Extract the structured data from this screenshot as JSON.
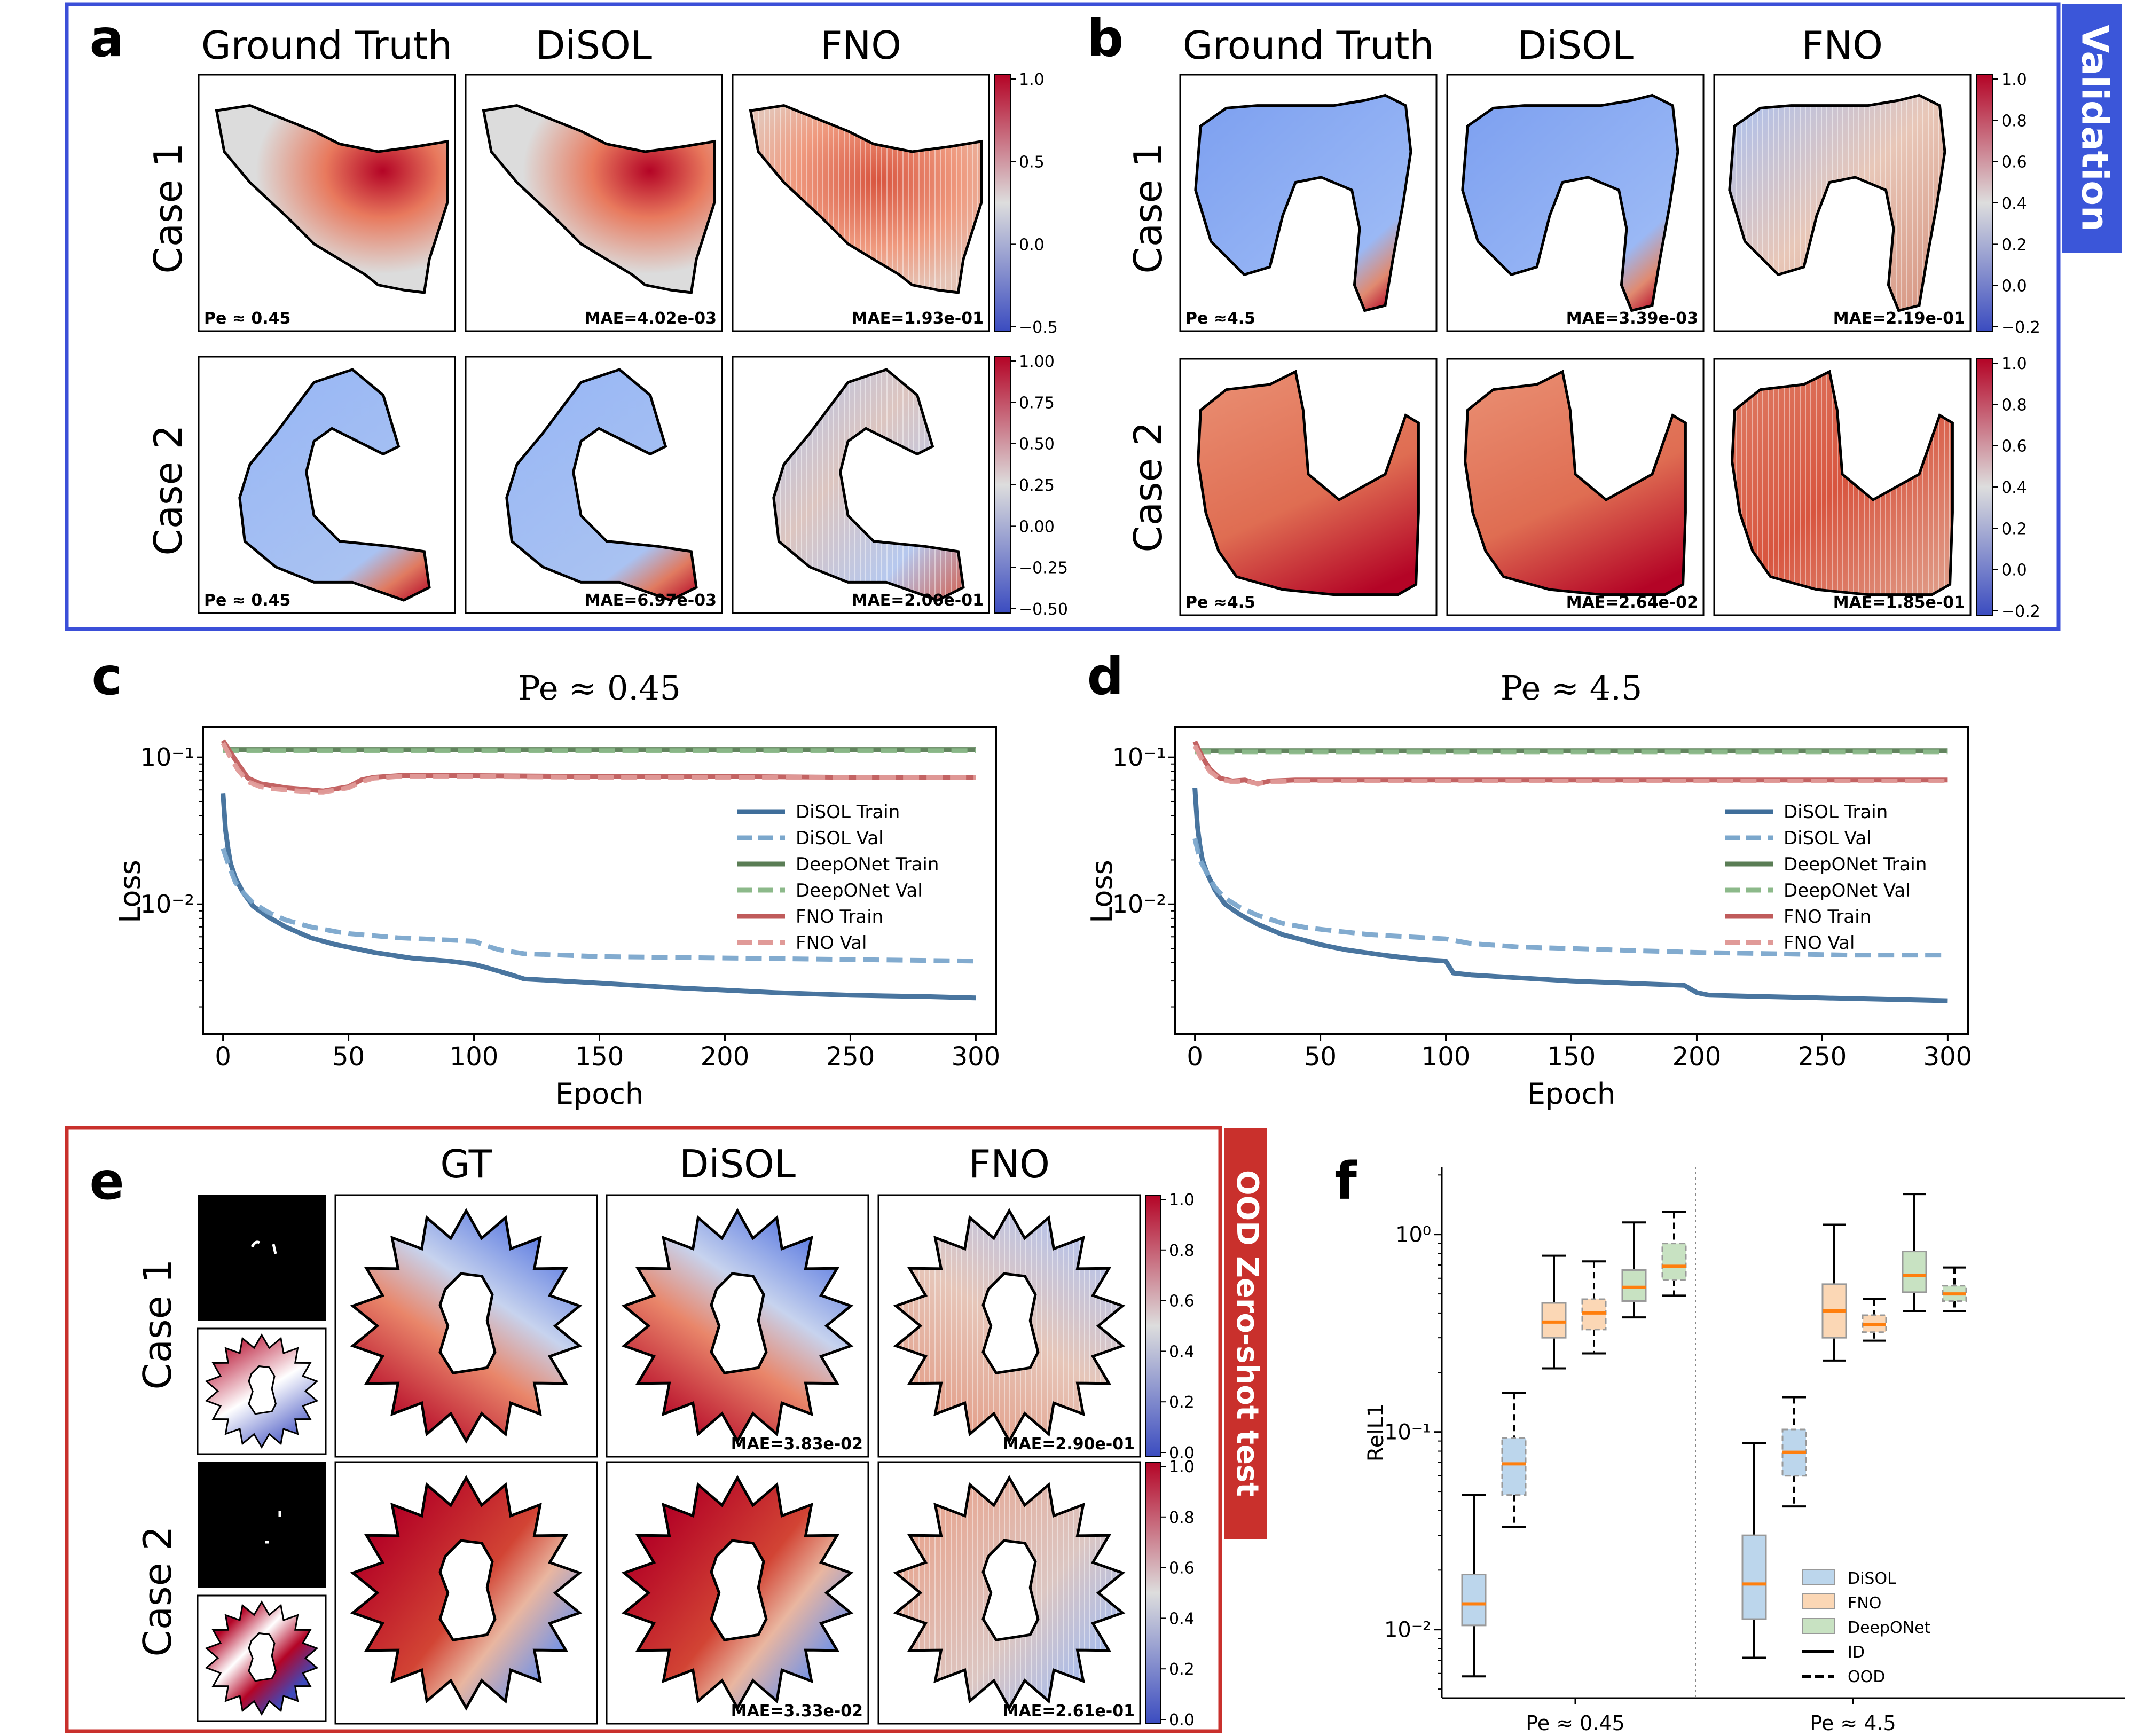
{
  "panel_letters": {
    "a": "a",
    "b": "b",
    "c": "c",
    "d": "d",
    "e": "e",
    "f": "f"
  },
  "colors": {
    "val_box": "#3b4fd8",
    "ood_box": "#c9302c",
    "val_tag": "#3b56d9",
    "ood_tag": "#c9302c",
    "disol": "#3f6e9a",
    "disol_light": "#7ba7cc",
    "deeponet": "#5a7d55",
    "deeponet_light": "#8cb98a",
    "fno": "#c05b5b",
    "fno_light": "#e09a98",
    "box_disol": "#bcd6ec",
    "box_fno": "#fbd7b5",
    "box_deeponet": "#c8e2c2",
    "median": "#ff7f0e"
  },
  "validation_tag": "Validation",
  "ood_tag": "OOD Zero-shot test",
  "panel_a": {
    "col_titles": [
      "Ground Truth",
      "DiSOL",
      "FNO"
    ],
    "row_labels": [
      "Case 1",
      "Case 2"
    ],
    "case1_labels": [
      "Pe ≈ 0.45",
      "MAE=4.02e-03",
      "MAE=1.93e-01"
    ],
    "case2_labels": [
      "Pe ≈ 0.45",
      "MAE=6.97e-03",
      "MAE=2.00e-01"
    ],
    "cbar1_ticks": [
      "1.0",
      "0.5",
      "0.0",
      "−0.5"
    ],
    "cbar2_ticks": [
      "1.00",
      "0.75",
      "0.50",
      "0.25",
      "0.00",
      "−0.25",
      "−0.50"
    ]
  },
  "panel_b": {
    "col_titles": [
      "Ground Truth",
      "DiSOL",
      "FNO"
    ],
    "row_labels": [
      "Case 1",
      "Case 2"
    ],
    "case1_labels": [
      "Pe ≈4.5",
      "MAE=3.39e-03",
      "MAE=2.19e-01"
    ],
    "case2_labels": [
      "Pe ≈4.5",
      "MAE=2.64e-02",
      "MAE=1.85e-01"
    ],
    "cbar1_ticks": [
      "1.0",
      "0.8",
      "0.6",
      "0.4",
      "0.2",
      "0.0",
      "−0.2"
    ],
    "cbar2_ticks": [
      "1.0",
      "0.8",
      "0.6",
      "0.4",
      "0.2",
      "0.0",
      "−0.2"
    ]
  },
  "panel_e": {
    "col_titles": [
      "GT",
      "DiSOL",
      "FNO"
    ],
    "row_labels": [
      "Case 1",
      "Case 2"
    ],
    "case1_labels": [
      "MAE=3.83e-02",
      "MAE=2.90e-01"
    ],
    "case2_labels": [
      "MAE=3.33e-02",
      "MAE=2.61e-01"
    ],
    "cbar_ticks": [
      "1.0",
      "0.8",
      "0.6",
      "0.4",
      "0.2",
      "0.0"
    ]
  },
  "chart_data": [
    {
      "id": "c",
      "type": "line",
      "title": "Pe ≈ 0.45",
      "xlabel": "Epoch",
      "ylabel": "Loss",
      "yscale": "log",
      "xlim": [
        -8,
        308
      ],
      "ylim": [
        0.0013,
        0.16
      ],
      "xticks": [
        0,
        50,
        100,
        150,
        200,
        250,
        300
      ],
      "ytick_labels": [
        "10⁻¹",
        "10⁻²"
      ],
      "legend": [
        "DiSOL Train",
        "DiSOL Val",
        "DeepONet Train",
        "DeepONet Val",
        "FNO Train",
        "FNO Val"
      ],
      "series": [
        {
          "name": "DiSOL Train",
          "style": "solid",
          "color": "#3f6e9a",
          "x": [
            0,
            1,
            2,
            3,
            5,
            8,
            12,
            18,
            25,
            35,
            45,
            50,
            60,
            75,
            90,
            100,
            105,
            110,
            115,
            120,
            150,
            180,
            200,
            220,
            250,
            280,
            300
          ],
          "y": [
            0.057,
            0.032,
            0.024,
            0.019,
            0.015,
            0.012,
            0.0097,
            0.0082,
            0.007,
            0.0059,
            0.0053,
            0.0051,
            0.0047,
            0.0043,
            0.0041,
            0.0039,
            0.0037,
            0.0035,
            0.0033,
            0.0031,
            0.0029,
            0.0027,
            0.0026,
            0.0025,
            0.0024,
            0.00235,
            0.0023
          ]
        },
        {
          "name": "DiSOL Val",
          "style": "dashed",
          "color": "#7ba7cc",
          "x": [
            0,
            2,
            5,
            8,
            12,
            18,
            25,
            35,
            45,
            50,
            60,
            70,
            80,
            90,
            100,
            105,
            110,
            120,
            150,
            200,
            250,
            300
          ],
          "y": [
            0.024,
            0.019,
            0.014,
            0.012,
            0.0102,
            0.0088,
            0.0078,
            0.007,
            0.0065,
            0.0063,
            0.0061,
            0.0059,
            0.0058,
            0.0057,
            0.0056,
            0.0052,
            0.0049,
            0.0046,
            0.0044,
            0.0043,
            0.0042,
            0.0041
          ]
        },
        {
          "name": "DeepONet Train",
          "style": "solid",
          "color": "#5a7d55",
          "x": [
            0,
            300
          ],
          "y": [
            0.113,
            0.113
          ]
        },
        {
          "name": "DeepONet Val",
          "style": "dashed",
          "color": "#8cb98a",
          "x": [
            0,
            300
          ],
          "y": [
            0.111,
            0.111
          ]
        },
        {
          "name": "FNO Train",
          "style": "solid",
          "color": "#c05b5b",
          "x": [
            0,
            3,
            6,
            10,
            15,
            20,
            25,
            30,
            35,
            40,
            45,
            50,
            55,
            60,
            65,
            70,
            80,
            100,
            150,
            200,
            250,
            300
          ],
          "y": [
            0.13,
            0.108,
            0.09,
            0.072,
            0.066,
            0.064,
            0.062,
            0.061,
            0.06,
            0.059,
            0.061,
            0.063,
            0.07,
            0.073,
            0.074,
            0.075,
            0.075,
            0.075,
            0.074,
            0.074,
            0.073,
            0.073
          ]
        },
        {
          "name": "FNO Val",
          "style": "dashed",
          "color": "#e09a98",
          "x": [
            0,
            3,
            6,
            10,
            15,
            20,
            25,
            30,
            35,
            40,
            45,
            50,
            55,
            60,
            65,
            70,
            80,
            100,
            150,
            200,
            250,
            300
          ],
          "y": [
            0.125,
            0.1,
            0.082,
            0.068,
            0.063,
            0.061,
            0.06,
            0.059,
            0.058,
            0.058,
            0.06,
            0.062,
            0.068,
            0.072,
            0.073,
            0.074,
            0.074,
            0.074,
            0.073,
            0.073,
            0.073,
            0.073
          ]
        }
      ]
    },
    {
      "id": "d",
      "type": "line",
      "title": "Pe ≈ 4.5",
      "xlabel": "Epoch",
      "ylabel": "Loss",
      "yscale": "log",
      "xlim": [
        -8,
        308
      ],
      "ylim": [
        0.0013,
        0.16
      ],
      "xticks": [
        0,
        50,
        100,
        150,
        200,
        250,
        300
      ],
      "ytick_labels": [
        "10⁻¹",
        "10⁻²"
      ],
      "legend": [
        "DiSOL Train",
        "DiSOL Val",
        "DeepONet Train",
        "DeepONet Val",
        "FNO Train",
        "FNO Val"
      ],
      "series": [
        {
          "name": "DiSOL Train",
          "style": "solid",
          "color": "#3f6e9a",
          "x": [
            0,
            1,
            2,
            3,
            5,
            8,
            12,
            18,
            25,
            35,
            45,
            50,
            60,
            75,
            90,
            100,
            103,
            110,
            150,
            195,
            200,
            205,
            250,
            300
          ],
          "y": [
            0.062,
            0.034,
            0.025,
            0.02,
            0.016,
            0.0125,
            0.01,
            0.0085,
            0.0073,
            0.0062,
            0.0056,
            0.0053,
            0.0049,
            0.0045,
            0.0042,
            0.0041,
            0.0034,
            0.0033,
            0.003,
            0.0028,
            0.0025,
            0.0024,
            0.0023,
            0.0022
          ]
        },
        {
          "name": "DiSOL Val",
          "style": "dashed",
          "color": "#7ba7cc",
          "x": [
            0,
            2,
            5,
            8,
            12,
            18,
            25,
            35,
            45,
            55,
            70,
            85,
            100,
            110,
            130,
            150,
            180,
            200,
            230,
            260,
            300
          ],
          "y": [
            0.028,
            0.02,
            0.016,
            0.013,
            0.011,
            0.0095,
            0.0084,
            0.0074,
            0.0069,
            0.0066,
            0.0062,
            0.006,
            0.0058,
            0.0054,
            0.0051,
            0.005,
            0.0048,
            0.0047,
            0.0046,
            0.0045,
            0.0045
          ]
        },
        {
          "name": "DeepONet Train",
          "style": "solid",
          "color": "#5a7d55",
          "x": [
            0,
            300
          ],
          "y": [
            0.111,
            0.111
          ]
        },
        {
          "name": "DeepONet Val",
          "style": "dashed",
          "color": "#8cb98a",
          "x": [
            0,
            300
          ],
          "y": [
            0.109,
            0.109
          ]
        },
        {
          "name": "FNO Train",
          "style": "solid",
          "color": "#c05b5b",
          "x": [
            0,
            3,
            6,
            10,
            15,
            20,
            25,
            30,
            40,
            60,
            100,
            150,
            200,
            250,
            300
          ],
          "y": [
            0.128,
            0.1,
            0.083,
            0.072,
            0.069,
            0.07,
            0.066,
            0.069,
            0.07,
            0.07,
            0.07,
            0.07,
            0.07,
            0.07,
            0.07
          ]
        },
        {
          "name": "FNO Val",
          "style": "dashed",
          "color": "#e09a98",
          "x": [
            0,
            3,
            6,
            10,
            15,
            20,
            25,
            30,
            40,
            60,
            100,
            150,
            200,
            250,
            300
          ],
          "y": [
            0.12,
            0.095,
            0.08,
            0.071,
            0.068,
            0.069,
            0.066,
            0.068,
            0.069,
            0.069,
            0.069,
            0.069,
            0.069,
            0.069,
            0.069
          ]
        }
      ]
    },
    {
      "id": "f",
      "type": "box",
      "ylabel": "RelL1",
      "yscale": "log",
      "ylim": [
        0.0045,
        2.2
      ],
      "ytick_labels": [
        "10⁰",
        "10⁻¹",
        "10⁻²"
      ],
      "categories": [
        "Pe ≈ 0.45",
        "Pe ≈ 4.5"
      ],
      "legend": [
        "DiSOL",
        "FNO",
        "DeepONet",
        "ID",
        "OOD"
      ],
      "boxes": [
        {
          "group": 0,
          "model": "DiSOL",
          "split": "ID",
          "whislo": 0.0058,
          "q1": 0.0105,
          "med": 0.0135,
          "q3": 0.019,
          "whishi": 0.048
        },
        {
          "group": 0,
          "model": "DiSOL",
          "split": "OOD",
          "whislo": 0.033,
          "q1": 0.048,
          "med": 0.069,
          "q3": 0.093,
          "whishi": 0.158
        },
        {
          "group": 0,
          "model": "FNO",
          "split": "ID",
          "whislo": 0.21,
          "q1": 0.3,
          "med": 0.36,
          "q3": 0.45,
          "whishi": 0.78
        },
        {
          "group": 0,
          "model": "FNO",
          "split": "OOD",
          "whislo": 0.25,
          "q1": 0.33,
          "med": 0.4,
          "q3": 0.47,
          "whishi": 0.73
        },
        {
          "group": 0,
          "model": "DeepONet",
          "split": "ID",
          "whislo": 0.38,
          "q1": 0.46,
          "med": 0.54,
          "q3": 0.66,
          "whishi": 1.15
        },
        {
          "group": 0,
          "model": "DeepONet",
          "split": "OOD",
          "whislo": 0.49,
          "q1": 0.59,
          "med": 0.69,
          "q3": 0.9,
          "whishi": 1.3
        },
        {
          "group": 1,
          "model": "DiSOL",
          "split": "ID",
          "whislo": 0.0072,
          "q1": 0.0113,
          "med": 0.017,
          "q3": 0.03,
          "whishi": 0.088
        },
        {
          "group": 1,
          "model": "DiSOL",
          "split": "OOD",
          "whislo": 0.042,
          "q1": 0.06,
          "med": 0.079,
          "q3": 0.103,
          "whishi": 0.15
        },
        {
          "group": 1,
          "model": "FNO",
          "split": "ID",
          "whislo": 0.23,
          "q1": 0.3,
          "med": 0.41,
          "q3": 0.56,
          "whishi": 1.12
        },
        {
          "group": 1,
          "model": "FNO",
          "split": "OOD",
          "whislo": 0.29,
          "q1": 0.32,
          "med": 0.35,
          "q3": 0.39,
          "whishi": 0.47
        },
        {
          "group": 1,
          "model": "DeepONet",
          "split": "ID",
          "whislo": 0.41,
          "q1": 0.51,
          "med": 0.62,
          "q3": 0.82,
          "whishi": 1.6
        },
        {
          "group": 1,
          "model": "DeepONet",
          "split": "OOD",
          "whislo": 0.41,
          "q1": 0.46,
          "med": 0.5,
          "q3": 0.55,
          "whishi": 0.68
        }
      ]
    }
  ]
}
